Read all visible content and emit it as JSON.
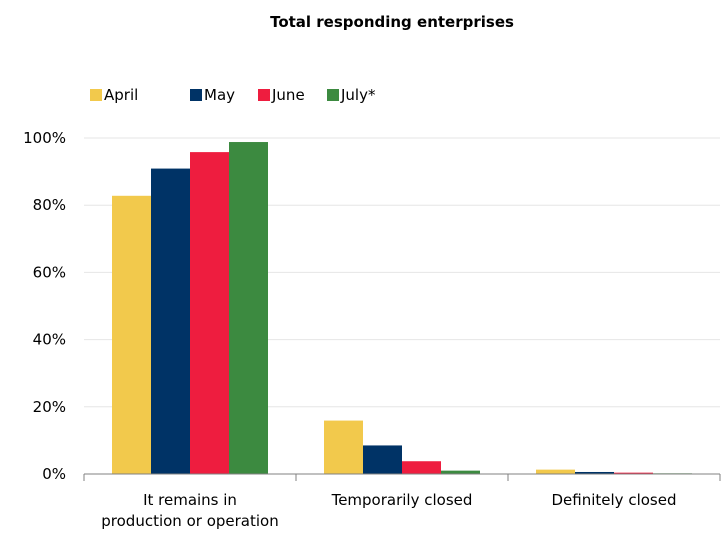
{
  "chart_data": {
    "type": "bar",
    "title": "Total responding enterprises",
    "categories": [
      [
        "It remains in",
        "production or operation"
      ],
      [
        "Temporarily closed"
      ],
      [
        "Definitely closed"
      ]
    ],
    "series": [
      {
        "name": "April",
        "color": "#F2C94C",
        "values": [
          82.8,
          15.9,
          1.3
        ]
      },
      {
        "name": "May",
        "color": "#003366",
        "values": [
          90.9,
          8.5,
          0.6
        ]
      },
      {
        "name": "June",
        "color": "#EE1D3F",
        "values": [
          95.8,
          3.8,
          0.4
        ]
      },
      {
        "name": "July*",
        "color": "#3C8A40",
        "values": [
          98.8,
          1.0,
          0.2
        ]
      }
    ],
    "ylim": [
      0,
      100
    ],
    "yticks": [
      "0%",
      "20%",
      "40%",
      "60%",
      "80%",
      "100%"
    ],
    "grid": true,
    "legend_position": "top-left"
  }
}
